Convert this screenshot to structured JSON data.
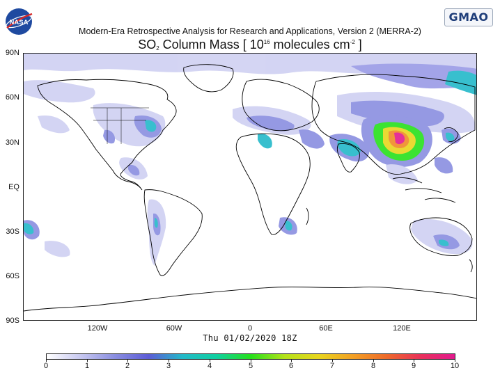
{
  "header": {
    "subtitle": "Modern-Era Retrospective Analysis for Research and Applications, Version 2 (MERRA-2)",
    "title_main": "SO",
    "title_sub": "2",
    "title_mid": " Column Mass [ 10",
    "title_sup1": "16",
    "title_units": " molecules cm",
    "title_sup2": "-2",
    "title_end": " ]"
  },
  "logos": {
    "nasa": "NASA",
    "gmao": "GMAO"
  },
  "axes": {
    "lat_labels": [
      "90N",
      "60N",
      "30N",
      "EQ",
      "30S",
      "60S",
      "90S"
    ],
    "lon_labels": [
      "120W",
      "60W",
      "0",
      "60E",
      "120E"
    ]
  },
  "timestamp": "Thu 01/02/2020 18Z",
  "colorbar": {
    "ticks": [
      "0",
      "1",
      "2",
      "3",
      "4",
      "5",
      "6",
      "7",
      "8",
      "9",
      "10"
    ],
    "range": [
      0,
      10
    ],
    "stops": [
      "#ffffff",
      "#c7c8f0",
      "#8a8ee0",
      "#5c5cd6",
      "#23b9c9",
      "#0fd0a0",
      "#26e01c",
      "#b4e21a",
      "#e8d51e",
      "#f2a024",
      "#ee6a2a",
      "#e8305a",
      "#e21a8e"
    ]
  },
  "colors": {
    "land_outline": "#000000",
    "low": "#d5d6f3",
    "mid": "#7a7be0",
    "teal": "#26c0c6",
    "green": "#2bd92a",
    "yellow": "#e6d41f",
    "orange": "#f08a26",
    "magenta": "#e21a8e"
  }
}
